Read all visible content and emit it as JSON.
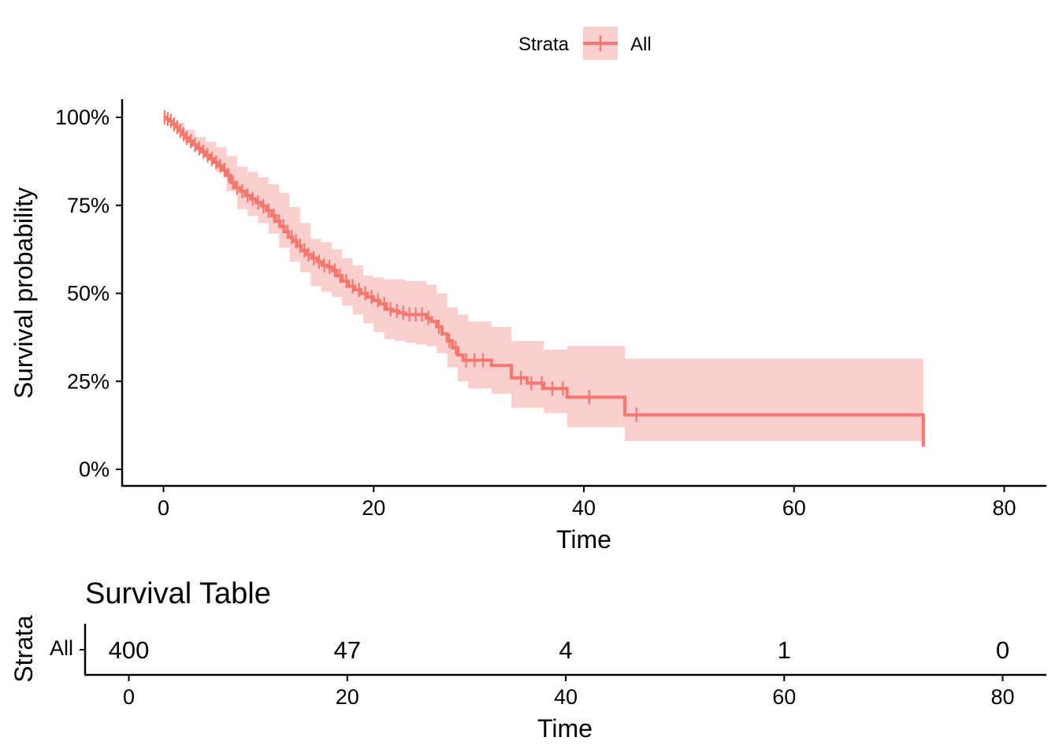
{
  "chart_data": [
    {
      "type": "line",
      "subtype": "kaplan-meier",
      "xlabel": "Time",
      "ylabel": "Survival probability",
      "xlim": [
        0,
        80
      ],
      "ylim": [
        0,
        1
      ],
      "x_ticks": [
        0,
        20,
        40,
        60,
        80
      ],
      "x_tick_labels": [
        "0",
        "20",
        "40",
        "60",
        "80"
      ],
      "y_ticks": [
        0,
        0.25,
        0.5,
        0.75,
        1.0
      ],
      "y_tick_labels": [
        "0%",
        "25%",
        "50%",
        "75%",
        "100%"
      ],
      "grid": false,
      "legend": {
        "position": "top",
        "title": "Strata",
        "entries": [
          "All"
        ]
      },
      "colors": {
        "line": "#F8766D",
        "band": "#FBCFCE"
      },
      "series": [
        {
          "name": "All",
          "steps": [
            [
              0,
              1.0
            ],
            [
              0.3,
              0.995
            ],
            [
              0.6,
              0.99
            ],
            [
              0.9,
              0.98
            ],
            [
              1.2,
              0.972
            ],
            [
              1.5,
              0.962
            ],
            [
              1.8,
              0.952
            ],
            [
              2.1,
              0.942
            ],
            [
              2.4,
              0.932
            ],
            [
              2.8,
              0.922
            ],
            [
              3.2,
              0.912
            ],
            [
              3.6,
              0.902
            ],
            [
              4.0,
              0.892
            ],
            [
              4.4,
              0.882
            ],
            [
              4.8,
              0.872
            ],
            [
              5.2,
              0.862
            ],
            [
              5.6,
              0.85
            ],
            [
              6.0,
              0.835
            ],
            [
              6.4,
              0.815
            ],
            [
              6.8,
              0.8
            ],
            [
              7.3,
              0.79
            ],
            [
              7.8,
              0.778
            ],
            [
              8.3,
              0.768
            ],
            [
              8.8,
              0.758
            ],
            [
              9.3,
              0.748
            ],
            [
              9.8,
              0.735
            ],
            [
              10.3,
              0.72
            ],
            [
              10.7,
              0.705
            ],
            [
              11.1,
              0.69
            ],
            [
              11.5,
              0.675
            ],
            [
              11.9,
              0.66
            ],
            [
              12.3,
              0.648
            ],
            [
              12.7,
              0.635
            ],
            [
              13.1,
              0.622
            ],
            [
              13.6,
              0.61
            ],
            [
              14.1,
              0.6
            ],
            [
              14.6,
              0.59
            ],
            [
              15.1,
              0.58
            ],
            [
              15.6,
              0.575
            ],
            [
              16.1,
              0.565
            ],
            [
              16.5,
              0.55
            ],
            [
              17.0,
              0.535
            ],
            [
              17.6,
              0.52
            ],
            [
              18.2,
              0.51
            ],
            [
              18.8,
              0.5
            ],
            [
              19.4,
              0.49
            ],
            [
              20.0,
              0.48
            ],
            [
              20.6,
              0.47
            ],
            [
              21.2,
              0.455
            ],
            [
              21.8,
              0.45
            ],
            [
              22.4,
              0.445
            ],
            [
              23.0,
              0.44
            ],
            [
              24.5,
              0.44
            ],
            [
              25.0,
              0.43
            ],
            [
              25.5,
              0.42
            ],
            [
              26.0,
              0.405
            ],
            [
              26.5,
              0.385
            ],
            [
              27.0,
              0.365
            ],
            [
              27.5,
              0.345
            ],
            [
              28.0,
              0.325
            ],
            [
              28.5,
              0.31
            ],
            [
              31.2,
              0.295
            ],
            [
              33.1,
              0.26
            ],
            [
              34.6,
              0.245
            ],
            [
              36.2,
              0.23
            ],
            [
              38.4,
              0.205
            ],
            [
              43.9,
              0.155
            ],
            [
              72.3,
              0.065
            ]
          ],
          "upper": [
            [
              0,
              1.0
            ],
            [
              1.0,
              0.985
            ],
            [
              2.0,
              0.965
            ],
            [
              3.0,
              0.945
            ],
            [
              4.0,
              0.93
            ],
            [
              5.0,
              0.915
            ],
            [
              6.0,
              0.89
            ],
            [
              7.0,
              0.86
            ],
            [
              8.0,
              0.845
            ],
            [
              9.0,
              0.83
            ],
            [
              10.0,
              0.81
            ],
            [
              11.0,
              0.785
            ],
            [
              12.0,
              0.745
            ],
            [
              13.0,
              0.7
            ],
            [
              14.0,
              0.655
            ],
            [
              15.0,
              0.645
            ],
            [
              16.0,
              0.625
            ],
            [
              17.0,
              0.6
            ],
            [
              18.0,
              0.58
            ],
            [
              19.0,
              0.55
            ],
            [
              20.0,
              0.545
            ],
            [
              21.0,
              0.54
            ],
            [
              22.0,
              0.54
            ],
            [
              23.0,
              0.535
            ],
            [
              24.0,
              0.535
            ],
            [
              25.0,
              0.525
            ],
            [
              26.0,
              0.5
            ],
            [
              27.0,
              0.46
            ],
            [
              28.0,
              0.44
            ],
            [
              29.0,
              0.42
            ],
            [
              31.2,
              0.405
            ],
            [
              33.1,
              0.365
            ],
            [
              36.2,
              0.34
            ],
            [
              38.4,
              0.35
            ],
            [
              43.9,
              0.315
            ],
            [
              72.3,
              0.315
            ]
          ],
          "lower": [
            [
              0,
              1.0
            ],
            [
              1.0,
              0.965
            ],
            [
              2.0,
              0.93
            ],
            [
              3.0,
              0.905
            ],
            [
              4.0,
              0.88
            ],
            [
              5.0,
              0.845
            ],
            [
              6.0,
              0.79
            ],
            [
              7.0,
              0.74
            ],
            [
              8.0,
              0.72
            ],
            [
              9.0,
              0.7
            ],
            [
              10.0,
              0.67
            ],
            [
              11.0,
              0.63
            ],
            [
              12.0,
              0.59
            ],
            [
              13.0,
              0.56
            ],
            [
              14.0,
              0.52
            ],
            [
              15.0,
              0.505
            ],
            [
              16.0,
              0.49
            ],
            [
              17.0,
              0.465
            ],
            [
              18.0,
              0.44
            ],
            [
              19.0,
              0.415
            ],
            [
              20.0,
              0.39
            ],
            [
              21.0,
              0.37
            ],
            [
              22.0,
              0.365
            ],
            [
              23.0,
              0.36
            ],
            [
              24.0,
              0.355
            ],
            [
              25.0,
              0.35
            ],
            [
              26.0,
              0.33
            ],
            [
              27.0,
              0.29
            ],
            [
              28.0,
              0.25
            ],
            [
              29.0,
              0.23
            ],
            [
              31.2,
              0.215
            ],
            [
              33.1,
              0.175
            ],
            [
              36.2,
              0.16
            ],
            [
              38.4,
              0.12
            ],
            [
              43.9,
              0.08
            ],
            [
              72.3,
              0.08
            ]
          ],
          "censor_times": [
            0.1,
            0.4,
            0.7,
            1.0,
            1.3,
            1.6,
            1.9,
            2.2,
            2.6,
            3.0,
            3.4,
            3.8,
            4.2,
            4.6,
            5.0,
            5.4,
            5.8,
            6.2,
            6.6,
            7.0,
            7.5,
            8.0,
            8.5,
            9.0,
            9.5,
            10.0,
            10.5,
            11.0,
            11.4,
            11.8,
            12.2,
            12.6,
            13.0,
            13.4,
            13.8,
            14.3,
            14.8,
            15.3,
            15.8,
            16.3,
            16.8,
            17.4,
            18.0,
            18.6,
            19.2,
            19.8,
            20.4,
            21.0,
            21.6,
            22.2,
            22.8,
            23.4,
            24.0,
            24.6,
            25.2,
            26.2,
            27.2,
            27.8,
            28.8,
            29.6,
            30.4,
            34.0,
            35.0,
            36.0,
            37.0,
            38.0,
            40.5,
            45.0
          ]
        }
      ]
    },
    {
      "type": "table",
      "title": "Survival Table",
      "xlabel": "Time",
      "ylabel": "Strata",
      "xlim": [
        0,
        80
      ],
      "x_ticks": [
        0,
        20,
        40,
        60,
        80
      ],
      "x_tick_labels": [
        "0",
        "20",
        "40",
        "60",
        "80"
      ],
      "rows": [
        {
          "name": "All",
          "values": [
            "400",
            "47",
            "4",
            "1",
            "0"
          ]
        }
      ]
    }
  ]
}
